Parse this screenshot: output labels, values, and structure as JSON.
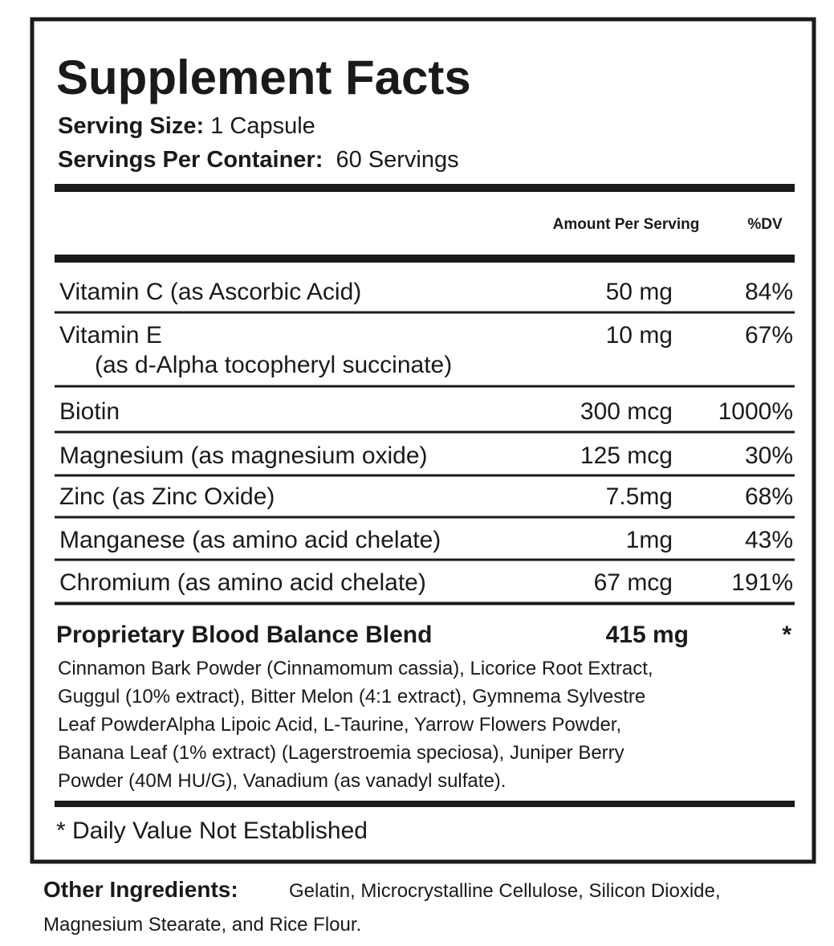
{
  "header": {
    "title": "Supplement Facts",
    "serving_size": {
      "label": "Serving Size:",
      "value": "1 Capsule"
    },
    "servings_per_container": {
      "label": "Servings Per Container:",
      "value": "60 Servings"
    }
  },
  "table": {
    "columns": [
      "Amount Per Serving",
      "%DV"
    ],
    "rows": [
      {
        "name": "Vitamin C (as Ascorbic Acid)",
        "amount": "50 mg",
        "dv": "84%"
      },
      {
        "name": "Vitamin E",
        "detail": "(as d-Alpha tocopheryl succinate)",
        "amount": "10 mg",
        "dv": "67%"
      },
      {
        "name": "Biotin",
        "amount": "300 mcg",
        "dv": "1000%"
      },
      {
        "name": "Magnesium (as magnesium oxide)",
        "amount": "125 mcg",
        "dv": "30%"
      },
      {
        "name": "Zinc (as Zinc Oxide)",
        "amount": "7.5mg",
        "dv": "68%"
      },
      {
        "name": "Manganese (as amino acid chelate)",
        "amount": "1mg",
        "dv": "43%"
      },
      {
        "name": "Chromium (as amino acid chelate)",
        "amount": "67 mcg",
        "dv": "191%"
      }
    ]
  },
  "blend": {
    "name": "Proprietary Blood Balance Blend",
    "amount": "415 mg",
    "dv": "*",
    "ingredients": [
      "Cinnamon Bark Powder (Cinnamomum cassia), Licorice Root Extract,",
      "Guggul (10% extract), Bitter Melon (4:1 extract), Gymnema Sylvestre",
      "Leaf PowderAlpha Lipoic Acid, L-Taurine, Yarrow Flowers Powder,",
      "Banana Leaf (1% extract) (Lagerstroemia speciosa), Juniper Berry",
      "Powder (40M HU/G), Vanadium (as vanadyl sulfate)."
    ]
  },
  "footnote": "* Daily Value Not Established",
  "other_ingredients": {
    "label": "Other Ingredients:",
    "lines": [
      "Gelatin, Microcrystalline Cellulose, Silicon Dioxide,",
      "Magnesium Stearate, and Rice Flour."
    ]
  }
}
